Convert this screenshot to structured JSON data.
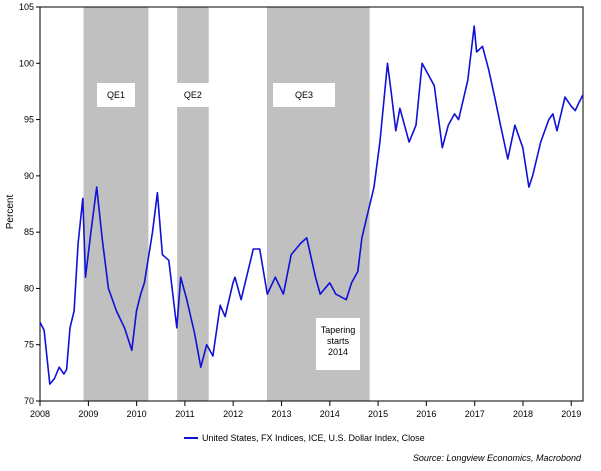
{
  "chart_data": {
    "type": "line",
    "ylabel": "Percent",
    "ylim": [
      70,
      105
    ],
    "xlim": [
      "2008-01-01",
      "2019-03-31"
    ],
    "y_ticks": [
      70,
      75,
      80,
      85,
      90,
      95,
      100,
      105
    ],
    "x_ticks": [
      "2008",
      "2009",
      "2010",
      "2011",
      "2012",
      "2013",
      "2014",
      "2015",
      "2016",
      "2017",
      "2018",
      "2019"
    ],
    "grid": false,
    "legend_position": "bottom",
    "series": [
      {
        "name": "United States, FX Indices, ICE, U.S. Dollar Index, Close",
        "color": "#1010d8",
        "points": [
          [
            "2008-01-01",
            77.0
          ],
          [
            "2008-02-01",
            76.3
          ],
          [
            "2008-03-15",
            71.5
          ],
          [
            "2008-04-20",
            72.0
          ],
          [
            "2008-05-25",
            73.0
          ],
          [
            "2008-06-30",
            72.4
          ],
          [
            "2008-07-20",
            72.8
          ],
          [
            "2008-08-15",
            76.5
          ],
          [
            "2008-09-15",
            78.0
          ],
          [
            "2008-10-15",
            84.0
          ],
          [
            "2008-11-20",
            88.0
          ],
          [
            "2008-12-10",
            81.0
          ],
          [
            "2009-01-20",
            85.0
          ],
          [
            "2009-03-05",
            89.0
          ],
          [
            "2009-04-15",
            84.5
          ],
          [
            "2009-06-01",
            80.0
          ],
          [
            "2009-08-01",
            78.0
          ],
          [
            "2009-10-01",
            76.5
          ],
          [
            "2009-11-25",
            74.5
          ],
          [
            "2009-12-31",
            78.0
          ],
          [
            "2010-02-01",
            79.5
          ],
          [
            "2010-03-01",
            80.5
          ],
          [
            "2010-05-01",
            85.0
          ],
          [
            "2010-06-07",
            88.5
          ],
          [
            "2010-07-15",
            83.0
          ],
          [
            "2010-09-01",
            82.5
          ],
          [
            "2010-11-01",
            76.5
          ],
          [
            "2010-11-30",
            81.0
          ],
          [
            "2011-01-15",
            79.0
          ],
          [
            "2011-03-15",
            76.0
          ],
          [
            "2011-05-01",
            73.0
          ],
          [
            "2011-06-15",
            75.0
          ],
          [
            "2011-08-01",
            74.0
          ],
          [
            "2011-09-25",
            78.5
          ],
          [
            "2011-11-01",
            77.5
          ],
          [
            "2011-12-31",
            80.5
          ],
          [
            "2012-01-15",
            81.0
          ],
          [
            "2012-03-01",
            79.0
          ],
          [
            "2012-06-01",
            83.5
          ],
          [
            "2012-07-20",
            83.5
          ],
          [
            "2012-09-15",
            79.5
          ],
          [
            "2012-11-15",
            81.0
          ],
          [
            "2013-01-15",
            79.5
          ],
          [
            "2013-03-15",
            83.0
          ],
          [
            "2013-05-25",
            84.0
          ],
          [
            "2013-07-10",
            84.5
          ],
          [
            "2013-09-15",
            81.0
          ],
          [
            "2013-10-20",
            79.5
          ],
          [
            "2013-12-31",
            80.5
          ],
          [
            "2014-02-15",
            79.5
          ],
          [
            "2014-05-05",
            79.0
          ],
          [
            "2014-06-15",
            80.5
          ],
          [
            "2014-08-01",
            81.5
          ],
          [
            "2014-09-01",
            84.5
          ],
          [
            "2014-10-01",
            86.0
          ],
          [
            "2014-12-01",
            89.0
          ],
          [
            "2015-01-15",
            93.0
          ],
          [
            "2015-03-13",
            100.0
          ],
          [
            "2015-04-15",
            97.0
          ],
          [
            "2015-05-15",
            94.0
          ],
          [
            "2015-06-15",
            96.0
          ],
          [
            "2015-08-24",
            93.0
          ],
          [
            "2015-10-15",
            94.5
          ],
          [
            "2015-11-30",
            100.0
          ],
          [
            "2016-01-15",
            99.0
          ],
          [
            "2016-03-01",
            98.0
          ],
          [
            "2016-05-01",
            92.5
          ],
          [
            "2016-06-15",
            94.5
          ],
          [
            "2016-08-01",
            95.5
          ],
          [
            "2016-09-01",
            95.0
          ],
          [
            "2016-11-10",
            98.5
          ],
          [
            "2016-12-28",
            103.3
          ],
          [
            "2017-01-15",
            101.0
          ],
          [
            "2017-03-01",
            101.5
          ],
          [
            "2017-04-15",
            99.5
          ],
          [
            "2017-06-01",
            97.0
          ],
          [
            "2017-07-15",
            94.5
          ],
          [
            "2017-09-08",
            91.5
          ],
          [
            "2017-11-01",
            94.5
          ],
          [
            "2017-12-31",
            92.5
          ],
          [
            "2018-02-15",
            89.0
          ],
          [
            "2018-03-15",
            90.0
          ],
          [
            "2018-05-15",
            93.0
          ],
          [
            "2018-07-15",
            95.0
          ],
          [
            "2018-08-15",
            95.5
          ],
          [
            "2018-09-15",
            94.0
          ],
          [
            "2018-11-15",
            97.0
          ],
          [
            "2018-12-31",
            96.2
          ],
          [
            "2019-01-31",
            95.8
          ],
          [
            "2019-02-28",
            96.5
          ],
          [
            "2019-03-31",
            97.2
          ]
        ]
      }
    ],
    "shaded_periods": [
      {
        "label": "QE1",
        "start": "2008-11-25",
        "end": "2010-03-31"
      },
      {
        "label": "QE2",
        "start": "2010-11-03",
        "end": "2011-06-30"
      },
      {
        "label": "QE3",
        "start": "2012-09-13",
        "end": "2014-10-29"
      }
    ],
    "annotation": {
      "lines": [
        "Tapering",
        "starts",
        "2014"
      ]
    },
    "source": "Source: Longview Economics, Macrobond"
  }
}
